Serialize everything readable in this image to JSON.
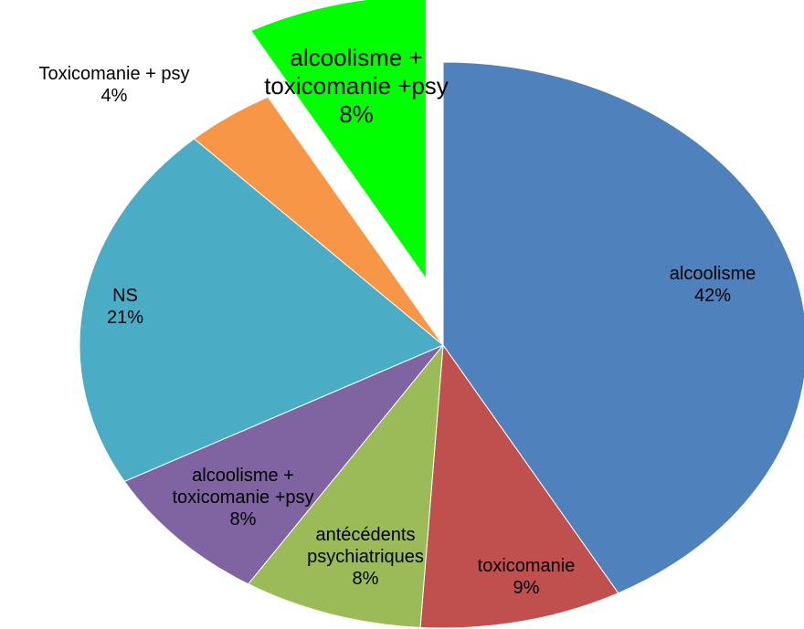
{
  "chart_data": {
    "type": "pie",
    "categories": [
      "alcoolisme",
      "toxicomanie",
      "antécédents psychiatriques",
      "alcoolisme + toxicomanie +psy",
      "NS",
      "Toxicomanie + psy",
      "alcoolisme + toxicomanie +psy"
    ],
    "values": [
      42,
      9,
      8,
      8,
      21,
      4,
      8
    ],
    "value_labels": [
      "42%",
      "9%",
      "8%",
      "8%",
      "21%",
      "4%",
      "8%"
    ],
    "colors": [
      "#4f81bd",
      "#c0504d",
      "#9bbb59",
      "#8064a2",
      "#4bacc6",
      "#f79646",
      "#00ff00"
    ],
    "exploded": [
      6
    ]
  }
}
